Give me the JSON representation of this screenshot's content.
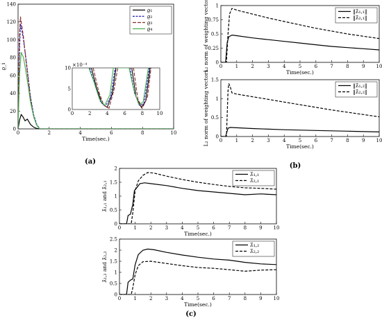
{
  "captions": {
    "a": "(a)",
    "b": "(b)",
    "c": "(c)"
  },
  "chart_data": [
    {
      "id": "a",
      "type": "line",
      "xlabel": "Time(sec.)",
      "ylabel": "ϱ_i",
      "xlim": [
        0,
        10
      ],
      "ylim": [
        0,
        140
      ],
      "xticks": [
        0,
        2,
        4,
        6,
        8,
        10
      ],
      "yticks": [
        0,
        20,
        40,
        60,
        80,
        100,
        120,
        140
      ],
      "legend": "top-right",
      "series": [
        {
          "name": "ϱ₁",
          "color": "#000000",
          "dash": "",
          "x": [
            0,
            0.1,
            0.2,
            0.3,
            0.45,
            0.6,
            0.8,
            1.0,
            1.2,
            1.4,
            10
          ],
          "y": [
            0,
            10,
            16,
            14,
            9,
            11,
            5,
            2,
            0.5,
            0,
            0
          ]
        },
        {
          "name": "ϱ₂",
          "color": "#1f1fbf",
          "dash": "3,1.5",
          "x": [
            0,
            0.08,
            0.15,
            0.25,
            0.35,
            0.5,
            0.65,
            0.8,
            1.0,
            1.2,
            1.4,
            10
          ],
          "y": [
            0,
            80,
            118,
            110,
            100,
            80,
            58,
            36,
            16,
            5,
            0,
            0
          ]
        },
        {
          "name": "ϱ₃",
          "color": "#8b2a2a",
          "dash": "5,2",
          "x": [
            0,
            0.08,
            0.15,
            0.22,
            0.35,
            0.5,
            0.65,
            0.8,
            1.0,
            1.2,
            1.4,
            10
          ],
          "y": [
            0,
            100,
            126,
            118,
            103,
            78,
            55,
            34,
            14,
            4,
            0,
            0
          ]
        },
        {
          "name": "ϱ₄",
          "color": "#4caf50",
          "dash": "",
          "x": [
            0,
            0.1,
            0.2,
            0.35,
            0.5,
            0.65,
            0.8,
            1.0,
            1.2,
            1.4,
            10
          ],
          "y": [
            0,
            62,
            86,
            80,
            65,
            48,
            30,
            14,
            4,
            0,
            0
          ]
        }
      ],
      "inset": {
        "exponent": "×10⁻⁴",
        "xlim": [
          0,
          10
        ],
        "ylim": [
          0,
          10
        ],
        "xticks": [
          0,
          2,
          4,
          6,
          8,
          10
        ],
        "yticks": [
          0,
          5,
          10
        ],
        "series": [
          {
            "color": "#000000",
            "dash": "",
            "x": [
              2.2,
              2.8,
              3.4,
              4.0,
              4.6,
              5.0,
              6.8,
              7.3,
              7.9,
              8.4,
              8.9
            ],
            "y": [
              10,
              5,
              1.5,
              0.5,
              4,
              10,
              10,
              3,
              0.5,
              2,
              10
            ]
          },
          {
            "color": "#1f1fbf",
            "dash": "3,1.5",
            "x": [
              2.0,
              2.6,
              3.2,
              3.8,
              4.4,
              4.9,
              6.6,
              7.1,
              7.7,
              8.2,
              8.8
            ],
            "y": [
              10,
              6,
              2,
              0.8,
              3,
              10,
              10,
              4,
              1,
              1.5,
              10
            ]
          },
          {
            "color": "#8b2a2a",
            "dash": "5,2",
            "x": [
              2.4,
              3.0,
              3.6,
              4.2,
              4.8,
              5.2,
              7.0,
              7.5,
              8.0,
              8.6,
              9.0
            ],
            "y": [
              10,
              4.5,
              1,
              0.3,
              5,
              10,
              10,
              2.5,
              0.3,
              3,
              10
            ]
          },
          {
            "color": "#4caf50",
            "dash": "",
            "x": [
              1.9,
              2.5,
              3.1,
              3.7,
              4.3,
              4.7,
              6.5,
              7.0,
              7.6,
              8.1,
              8.7
            ],
            "y": [
              10,
              6.5,
              2.5,
              1,
              3.5,
              10,
              10,
              5,
              1.2,
              1.8,
              10
            ]
          }
        ]
      }
    },
    {
      "id": "b1",
      "type": "line",
      "xlabel": "Time(sec.)",
      "ylabel": "L₂ norm of weighting vectors",
      "xlim": [
        0,
        10
      ],
      "ylim": [
        0,
        1
      ],
      "xticks": [
        0,
        1,
        2,
        3,
        4,
        5,
        6,
        7,
        8,
        9,
        10
      ],
      "yticks": [
        0,
        0.25,
        0.5,
        0.75,
        1
      ],
      "ytick_labels": [
        "0",
        "0.25",
        "0.5",
        "0.75",
        "1"
      ],
      "legend": "top-right",
      "series": [
        {
          "name": "‖λ̂₁,₁‖",
          "color": "#000000",
          "dash": "",
          "x": [
            0,
            0.3,
            0.4,
            0.5,
            0.7,
            1,
            2,
            3,
            4,
            5,
            6,
            7,
            8,
            9,
            10
          ],
          "y": [
            0,
            0,
            0.35,
            0.45,
            0.48,
            0.47,
            0.43,
            0.4,
            0.37,
            0.34,
            0.31,
            0.28,
            0.26,
            0.24,
            0.22
          ]
        },
        {
          "name": "‖λ̂₂,₁‖",
          "color": "#000000",
          "dash": "4,2",
          "x": [
            0,
            0.35,
            0.45,
            0.55,
            0.7,
            1,
            2,
            3,
            4,
            5,
            6,
            7,
            8,
            9,
            10
          ],
          "y": [
            0,
            0,
            0.5,
            0.85,
            0.95,
            0.92,
            0.85,
            0.78,
            0.72,
            0.66,
            0.6,
            0.55,
            0.5,
            0.46,
            0.42
          ]
        }
      ]
    },
    {
      "id": "b2",
      "type": "line",
      "xlabel": "Time(sec.)",
      "ylabel": "L₂ norm of weighting vectors",
      "xlim": [
        0,
        10
      ],
      "ylim": [
        0,
        1.5
      ],
      "xticks": [
        0,
        1,
        2,
        3,
        4,
        5,
        6,
        7,
        8,
        9,
        10
      ],
      "yticks": [
        0,
        0.5,
        1,
        1.5
      ],
      "ytick_labels": [
        "0",
        "0.5",
        "1",
        "1.5"
      ],
      "legend": "top-right",
      "series": [
        {
          "name": "‖λ̂₁,₂‖",
          "color": "#000000",
          "dash": "",
          "x": [
            0,
            0.3,
            0.45,
            0.6,
            1,
            2,
            4,
            6,
            8,
            10
          ],
          "y": [
            0,
            0,
            0.22,
            0.24,
            0.23,
            0.21,
            0.18,
            0.16,
            0.14,
            0.12
          ]
        },
        {
          "name": "‖λ̂₂,₂‖",
          "color": "#000000",
          "dash": "4,2",
          "x": [
            0,
            0.35,
            0.45,
            0.5,
            0.6,
            0.7,
            1,
            2,
            3,
            4,
            5,
            6,
            7,
            8,
            9,
            10
          ],
          "y": [
            0,
            0,
            1.2,
            1.4,
            1.3,
            1.15,
            1.12,
            1.05,
            0.98,
            0.91,
            0.84,
            0.77,
            0.7,
            0.64,
            0.58,
            0.52
          ]
        }
      ]
    },
    {
      "id": "c1",
      "type": "line",
      "xlabel": "Time(sec.)",
      "ylabel": "λ̂₁,₁ and λ̂₂,₁",
      "xlim": [
        0,
        10
      ],
      "ylim": [
        0,
        2
      ],
      "xticks": [
        0,
        1,
        2,
        3,
        4,
        5,
        6,
        7,
        8,
        9,
        10
      ],
      "yticks": [
        0,
        0.5,
        1,
        1.5,
        2
      ],
      "ytick_labels": [
        "0",
        "0.5",
        "1",
        "1.5",
        "2"
      ],
      "legend": "top-right",
      "series": [
        {
          "name": "λ̂₁,₁",
          "color": "#000000",
          "dash": "",
          "x": [
            0,
            0.45,
            0.55,
            0.7,
            0.85,
            0.95,
            1.1,
            1.3,
            1.6,
            2,
            3,
            4,
            5,
            6,
            7,
            8,
            9,
            10
          ],
          "y": [
            0,
            0,
            0.3,
            0.35,
            0.7,
            1.2,
            1.3,
            1.45,
            1.48,
            1.45,
            1.38,
            1.28,
            1.2,
            1.15,
            1.1,
            1.05,
            1.08,
            1.05
          ]
        },
        {
          "name": "λ̂₂,₁",
          "color": "#000000",
          "dash": "4,2",
          "x": [
            0,
            0.75,
            0.85,
            1.0,
            1.2,
            1.5,
            1.8,
            2.2,
            3,
            4,
            5,
            6,
            7,
            8,
            9,
            10
          ],
          "y": [
            0,
            0,
            0.4,
            1.2,
            1.55,
            1.75,
            1.85,
            1.83,
            1.72,
            1.6,
            1.5,
            1.42,
            1.35,
            1.3,
            1.28,
            1.25
          ]
        }
      ]
    },
    {
      "id": "c2",
      "type": "line",
      "xlabel": "Time(sec.)",
      "ylabel": "λ̂₁,₂ and λ̂₂,₂",
      "xlim": [
        0,
        10
      ],
      "ylim": [
        0,
        2.5
      ],
      "xticks": [
        0,
        1,
        2,
        3,
        4,
        5,
        6,
        7,
        8,
        9,
        10
      ],
      "yticks": [
        0,
        0.5,
        1,
        1.5,
        2,
        2.5
      ],
      "ytick_labels": [
        "0",
        "0.5",
        "1",
        "1.5",
        "2",
        "2.5"
      ],
      "legend": "top-right",
      "series": [
        {
          "name": "λ̂₁,₂",
          "color": "#000000",
          "dash": "",
          "x": [
            0,
            0.45,
            0.55,
            0.7,
            0.85,
            1.0,
            1.2,
            1.5,
            1.8,
            2.2,
            3,
            4,
            5,
            6,
            7,
            8,
            9,
            10
          ],
          "y": [
            0,
            0,
            0.55,
            0.65,
            0.7,
            1.35,
            1.8,
            2.0,
            2.05,
            2.02,
            1.9,
            1.78,
            1.68,
            1.6,
            1.55,
            1.45,
            1.38,
            1.35
          ]
        },
        {
          "name": "λ̂₂,₂",
          "color": "#000000",
          "dash": "4,2",
          "x": [
            0,
            0.75,
            0.85,
            1.0,
            1.2,
            1.5,
            2,
            3,
            4,
            5,
            6,
            7,
            8,
            9,
            10
          ],
          "y": [
            0,
            0,
            0.3,
            0.9,
            1.3,
            1.48,
            1.5,
            1.4,
            1.3,
            1.22,
            1.18,
            1.12,
            1.05,
            1.1,
            1.12
          ]
        }
      ]
    }
  ]
}
